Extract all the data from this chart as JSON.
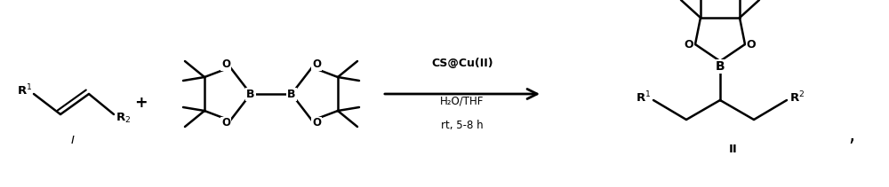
{
  "bg_color": "#ffffff",
  "line_color": "#000000",
  "line_width": 1.8,
  "fig_width": 10.0,
  "fig_height": 2.11,
  "dpi": 100,
  "arrow_label1": "CS@Cu(II)",
  "arrow_label2": "H₂O/THF",
  "arrow_label3": "rt, 5-8 h",
  "label_I": "I",
  "label_II": "II",
  "plus_sign": "+",
  "comma": ","
}
